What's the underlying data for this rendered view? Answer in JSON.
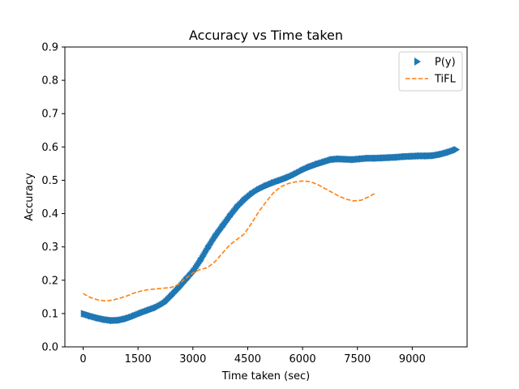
{
  "chart_data": {
    "type": "line",
    "title": "Accuracy vs Time taken",
    "xlabel": "Time taken (sec)",
    "ylabel": "Accuracy",
    "xlim": [
      -500,
      10500
    ],
    "ylim": [
      0,
      0.9
    ],
    "xticks": [
      0,
      1500,
      3000,
      4500,
      6000,
      7500,
      9000
    ],
    "yticks": [
      0.0,
      0.1,
      0.2,
      0.3,
      0.4,
      0.5,
      0.6,
      0.7,
      0.8,
      0.9
    ],
    "grid": false,
    "legend_position": "top-right",
    "series": [
      {
        "name": "P(y)",
        "style": "triangle-right-markers",
        "color": "#1f77b4",
        "x": [
          0,
          200,
          400,
          600,
          800,
          1000,
          1200,
          1400,
          1600,
          1800,
          2000,
          2200,
          2400,
          2600,
          2800,
          3000,
          3200,
          3400,
          3600,
          3800,
          4000,
          4200,
          4400,
          4600,
          4800,
          5000,
          5200,
          5400,
          5600,
          5800,
          6000,
          6200,
          6400,
          6600,
          6800,
          7000,
          7200,
          7400,
          7600,
          7800,
          8000,
          8200,
          8400,
          8600,
          8800,
          9000,
          9200,
          9400,
          9600,
          9800,
          10000,
          10200
        ],
        "values": [
          0.1,
          0.093,
          0.087,
          0.082,
          0.079,
          0.08,
          0.085,
          0.093,
          0.102,
          0.11,
          0.118,
          0.13,
          0.152,
          0.175,
          0.2,
          0.225,
          0.258,
          0.295,
          0.33,
          0.36,
          0.39,
          0.418,
          0.44,
          0.458,
          0.472,
          0.483,
          0.492,
          0.5,
          0.508,
          0.518,
          0.53,
          0.54,
          0.548,
          0.555,
          0.562,
          0.564,
          0.563,
          0.562,
          0.564,
          0.566,
          0.566,
          0.567,
          0.568,
          0.569,
          0.571,
          0.572,
          0.573,
          0.573,
          0.574,
          0.578,
          0.584,
          0.592
        ]
      },
      {
        "name": "TiFL",
        "style": "dashed",
        "color": "#ff7f0e",
        "x": [
          0,
          200,
          400,
          600,
          800,
          1000,
          1200,
          1400,
          1600,
          1800,
          2000,
          2200,
          2400,
          2600,
          2800,
          3000,
          3200,
          3400,
          3600,
          3800,
          4000,
          4200,
          4400,
          4600,
          4800,
          5000,
          5200,
          5400,
          5600,
          5800,
          6000,
          6200,
          6400,
          6600,
          6800,
          7000,
          7200,
          7400,
          7600,
          7800,
          8000
        ],
        "values": [
          0.16,
          0.148,
          0.141,
          0.138,
          0.14,
          0.146,
          0.153,
          0.162,
          0.168,
          0.172,
          0.174,
          0.176,
          0.178,
          0.187,
          0.205,
          0.222,
          0.232,
          0.238,
          0.255,
          0.28,
          0.305,
          0.322,
          0.338,
          0.37,
          0.405,
          0.435,
          0.462,
          0.48,
          0.49,
          0.495,
          0.498,
          0.496,
          0.488,
          0.476,
          0.464,
          0.452,
          0.443,
          0.438,
          0.44,
          0.45,
          0.462
        ]
      }
    ]
  }
}
